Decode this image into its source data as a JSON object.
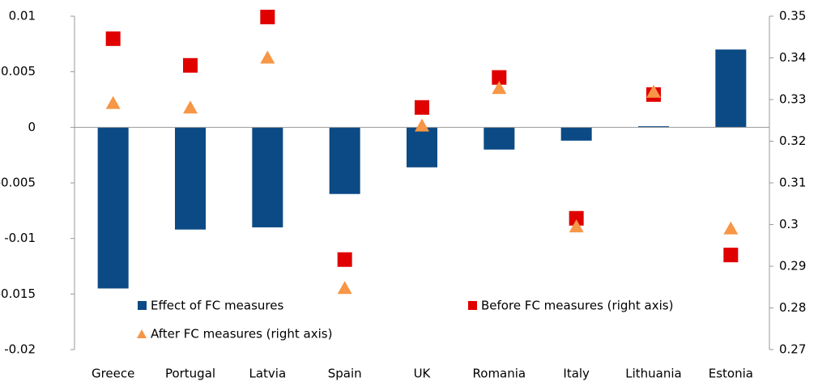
{
  "chart_data": {
    "type": "bar",
    "categories": [
      "Greece",
      "Portugal",
      "Latvia",
      "Spain",
      "UK",
      "Romania",
      "Italy",
      "Lithuania",
      "Estonia"
    ],
    "series": [
      {
        "name": "Effect of FC measures",
        "type": "bar",
        "color": "#0b4a85",
        "values": [
          -0.0145,
          -0.0092,
          -0.009,
          -0.006,
          -0.0036,
          -0.002,
          -0.0012,
          0.0001,
          0.007
        ]
      },
      {
        "name": "Before FC measures  (right axis)",
        "type": "scatter",
        "marker": "square",
        "axis": "y2",
        "color": "#e00000",
        "values": [
          0.3446,
          0.3382,
          0.3498,
          0.2916,
          0.3281,
          0.3353,
          0.3015,
          0.3312,
          0.2927
        ]
      },
      {
        "name": "After FC measures (right axis)",
        "type": "scatter",
        "marker": "triangle",
        "axis": "y2",
        "color": "#f79646",
        "values": [
          0.3291,
          0.328,
          0.34,
          0.2847,
          0.3237,
          0.3327,
          0.2995,
          0.3318,
          0.299
        ]
      }
    ],
    "ylim": [
      -0.02,
      0.01
    ],
    "yticks": [
      -0.02,
      -0.015,
      -0.01,
      -0.005,
      0,
      0.005,
      0.01
    ],
    "y2lim": [
      0.27,
      0.35
    ],
    "y2ticks": [
      0.27,
      0.28,
      0.29,
      0.3,
      0.31,
      0.32,
      0.33,
      0.34,
      0.35
    ]
  }
}
